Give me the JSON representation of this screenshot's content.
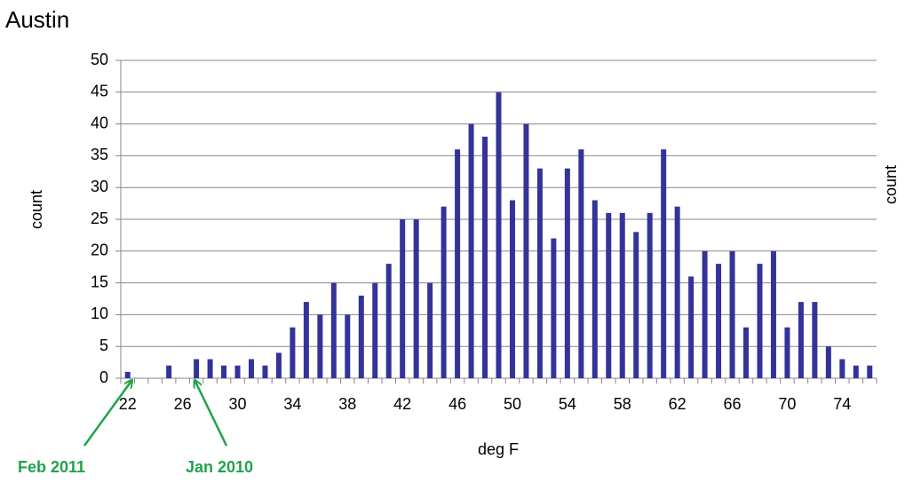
{
  "chart_data": {
    "type": "bar",
    "title": "Austin",
    "x_label": "deg F",
    "y_label": "count",
    "y2_label": "count",
    "categories": [
      "22",
      null,
      null,
      null,
      "26",
      null,
      null,
      null,
      "30",
      null,
      null,
      null,
      "34",
      null,
      null,
      null,
      "38",
      null,
      null,
      null,
      "42",
      null,
      null,
      null,
      "46",
      null,
      null,
      null,
      "50",
      null,
      null,
      null,
      "54",
      null,
      null,
      null,
      "58",
      null,
      null,
      null,
      "62",
      null,
      null,
      null,
      "66",
      null,
      null,
      null,
      "70",
      null,
      null,
      null,
      "74",
      null,
      null
    ],
    "values": [
      1,
      0,
      0,
      2,
      0,
      3,
      3,
      2,
      2,
      3,
      2,
      4,
      8,
      12,
      10,
      15,
      10,
      13,
      15,
      18,
      25,
      25,
      15,
      27,
      36,
      40,
      38,
      45,
      28,
      40,
      33,
      22,
      33,
      36,
      28,
      26,
      26,
      23,
      26,
      36,
      27,
      16,
      20,
      18,
      20,
      8,
      18,
      20,
      8,
      12,
      12,
      5,
      3,
      2,
      2
    ],
    "color": "#333399",
    "ylim": [
      0,
      50
    ],
    "yticks": [
      0,
      5,
      10,
      15,
      20,
      25,
      30,
      35,
      40,
      45,
      50
    ],
    "grid": true,
    "annotations": [
      {
        "text": "Feb 2011",
        "x": 22,
        "color": "#1fa34a"
      },
      {
        "text": "Jan 2010",
        "x": 27,
        "color": "#1fa34a"
      }
    ]
  }
}
